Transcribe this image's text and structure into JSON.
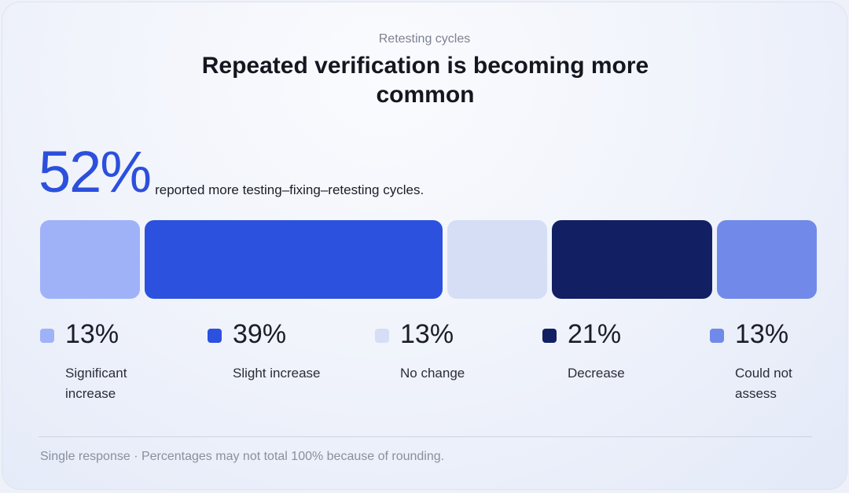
{
  "eyebrow": "Retesting cycles",
  "title": "Repeated verification is becoming more common",
  "headline": {
    "value": "52%",
    "text": "reported more testing–fixing–retesting cycles."
  },
  "chart_data": {
    "type": "bar",
    "orientation": "horizontal-stacked",
    "categories": [
      "Significant increase",
      "Slight increase",
      "No change",
      "Decrease",
      "Could not assess"
    ],
    "values": [
      13,
      39,
      13,
      21,
      13
    ],
    "value_labels": [
      "13%",
      "39%",
      "13%",
      "21%",
      "13%"
    ],
    "colors": [
      "#9fb2f8",
      "#2c51df",
      "#d5def5",
      "#121f63",
      "#7189e8"
    ],
    "legend_placement": "bottom"
  },
  "footnote": "Single response · Percentages may not total 100% because of rounding."
}
